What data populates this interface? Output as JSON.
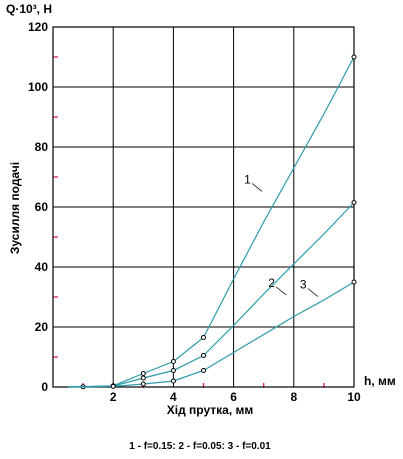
{
  "chart_data": {
    "type": "line",
    "ylabel_top": "Q·10³, Н",
    "ylabel": "Зусилля подачі",
    "xlabel_right": "h, мм",
    "xlabel": "Хід прутка, мм",
    "legend": "1 - f=0.15: 2 - f=0.05: 3 - f=0.01",
    "xlim": [
      0,
      10
    ],
    "ylim": [
      0,
      120
    ],
    "xticks": [
      {
        "v": 2,
        "t": "2"
      },
      {
        "v": 4,
        "t": "4"
      },
      {
        "v": 6,
        "t": "6"
      },
      {
        "v": 8,
        "t": "8"
      },
      {
        "v": 10,
        "t": "10"
      }
    ],
    "yticks": [
      {
        "v": 0,
        "t": "0"
      },
      {
        "v": 20,
        "t": "20"
      },
      {
        "v": 40,
        "t": "40"
      },
      {
        "v": 60,
        "t": "60"
      },
      {
        "v": 80,
        "t": "80"
      },
      {
        "v": 100,
        "t": "100"
      },
      {
        "v": 120,
        "t": "120"
      }
    ],
    "grid": true,
    "line_color": "#2a9aa8",
    "marker_color": "#e6007e",
    "series": [
      {
        "name": "1",
        "label_pos": [
          6.55,
          68.5
        ],
        "points": [
          [
            0.5,
            0
          ],
          [
            1,
            0.1
          ],
          [
            2,
            0.4
          ],
          [
            3,
            4.5
          ],
          [
            4,
            8.5
          ],
          [
            5,
            16.5
          ],
          [
            6,
            36
          ],
          [
            7,
            55
          ],
          [
            8,
            73
          ],
          [
            9,
            91
          ],
          [
            10,
            110
          ]
        ],
        "markers": [
          [
            1,
            0.1
          ],
          [
            2,
            0.4
          ],
          [
            3,
            4.5
          ],
          [
            4,
            8.5
          ],
          [
            5,
            16.5
          ],
          [
            10,
            110
          ]
        ]
      },
      {
        "name": "2",
        "label_pos": [
          7.35,
          34
        ],
        "points": [
          [
            0.5,
            0
          ],
          [
            2,
            0.3
          ],
          [
            3,
            3
          ],
          [
            4,
            5.5
          ],
          [
            5,
            10.5
          ],
          [
            6,
            20.5
          ],
          [
            7,
            31
          ],
          [
            8,
            41
          ],
          [
            9,
            51
          ],
          [
            10,
            61.5
          ]
        ],
        "markers": [
          [
            2,
            0.3
          ],
          [
            3,
            3
          ],
          [
            4,
            5.5
          ],
          [
            5,
            10.5
          ],
          [
            10,
            61.5
          ]
        ]
      },
      {
        "name": "3",
        "label_pos": [
          8.4,
          33.5
        ],
        "points": [
          [
            0.5,
            0
          ],
          [
            2,
            0.2
          ],
          [
            3,
            1
          ],
          [
            4,
            2
          ],
          [
            5,
            5.5
          ],
          [
            6,
            11.5
          ],
          [
            7,
            17.5
          ],
          [
            8,
            23.5
          ],
          [
            9,
            29
          ],
          [
            10,
            35
          ]
        ],
        "markers": [
          [
            2,
            0.2
          ],
          [
            3,
            1
          ],
          [
            4,
            2
          ],
          [
            5,
            5.5
          ],
          [
            10,
            35
          ]
        ]
      }
    ]
  }
}
